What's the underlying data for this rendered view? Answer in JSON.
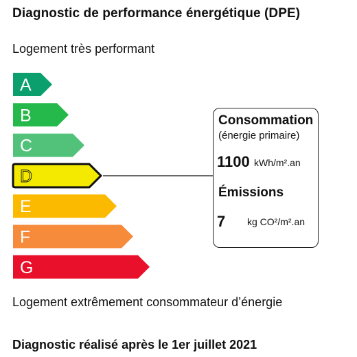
{
  "title": "Diagnostic de performance énergétique (DPE)",
  "top_label": "Logement très performant",
  "bottom_label": "Logement extrêmement consommateur d’énergie",
  "footer": "Diagnostic réalisé après le 1er juillet 2021",
  "classes": [
    {
      "letter": "A",
      "color": "#0a9f6d"
    },
    {
      "letter": "B",
      "color": "#25b84a"
    },
    {
      "letter": "C",
      "color": "#52c27a"
    },
    {
      "letter": "D",
      "color": "#f4ea00",
      "selected": true
    },
    {
      "letter": "E",
      "color": "#fbb900"
    },
    {
      "letter": "F",
      "color": "#f68b3c"
    },
    {
      "letter": "G",
      "color": "#e8102a"
    }
  ],
  "panel": {
    "consumption_label": "Consommation",
    "consumption_sub": "(énergie primaire)",
    "consumption_value": "1100",
    "consumption_unit": "kWh/m².an",
    "emissions_label": "Émissions",
    "emissions_value": "7",
    "emissions_unit": "kg CO²/m².an"
  }
}
